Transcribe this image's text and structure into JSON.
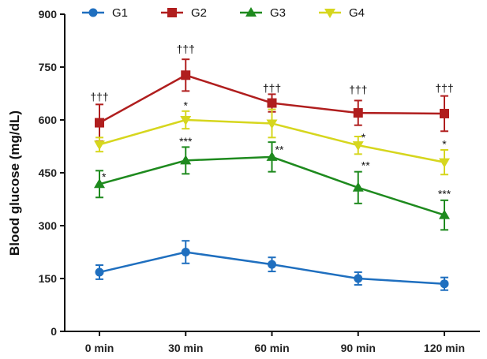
{
  "chart_data": {
    "type": "line",
    "title": "",
    "xlabel": "",
    "ylabel": "Blood glucose (mg/dL)",
    "categories": [
      "0 min",
      "30 min",
      "60 min",
      "90 min",
      "120 min"
    ],
    "yticks": [
      "0",
      "150",
      "300",
      "450",
      "600",
      "750",
      "900"
    ],
    "ylim": [
      0,
      900
    ],
    "grid": false,
    "legend_position": "top",
    "series": [
      {
        "name": "G1",
        "color": "#1f6fbf",
        "marker": "circle",
        "values": [
          168,
          225,
          190,
          150,
          135
        ],
        "errors": [
          20,
          32,
          20,
          18,
          18
        ]
      },
      {
        "name": "G2",
        "color": "#b01e1e",
        "marker": "square",
        "values": [
          592,
          727,
          648,
          620,
          618
        ],
        "errors": [
          52,
          45,
          25,
          35,
          50
        ]
      },
      {
        "name": "G3",
        "color": "#1e8a1e",
        "marker": "triangle-up",
        "values": [
          418,
          485,
          495,
          408,
          330
        ],
        "errors": [
          38,
          38,
          42,
          45,
          42
        ]
      },
      {
        "name": "G4",
        "color": "#d6d61e",
        "marker": "triangle-down",
        "values": [
          530,
          600,
          590,
          528,
          480
        ],
        "errors": [
          20,
          25,
          40,
          25,
          35
        ]
      }
    ],
    "annotations": [
      {
        "text": "†††",
        "category": "0 min",
        "y": 655
      },
      {
        "text": "†††",
        "category": "30 min",
        "y": 790
      },
      {
        "text": "†††",
        "category": "60 min",
        "y": 680
      },
      {
        "text": "†††",
        "category": "90 min",
        "y": 675
      },
      {
        "text": "†††",
        "category": "120 min",
        "y": 680
      },
      {
        "text": "*",
        "category": "30 min",
        "y": 630
      },
      {
        "text": "*",
        "category": "90 min",
        "y": 540
      },
      {
        "text": "*",
        "category": "120 min",
        "y": 520
      },
      {
        "text": "***",
        "category": "30 min",
        "y": 528
      },
      {
        "text": "**",
        "category": "60 min",
        "y": 505
      },
      {
        "text": "**",
        "category": "90 min",
        "y": 460
      },
      {
        "text": "***",
        "category": "120 min",
        "y": 380
      },
      {
        "text": "*",
        "category": "0 min",
        "y": 428
      }
    ]
  }
}
